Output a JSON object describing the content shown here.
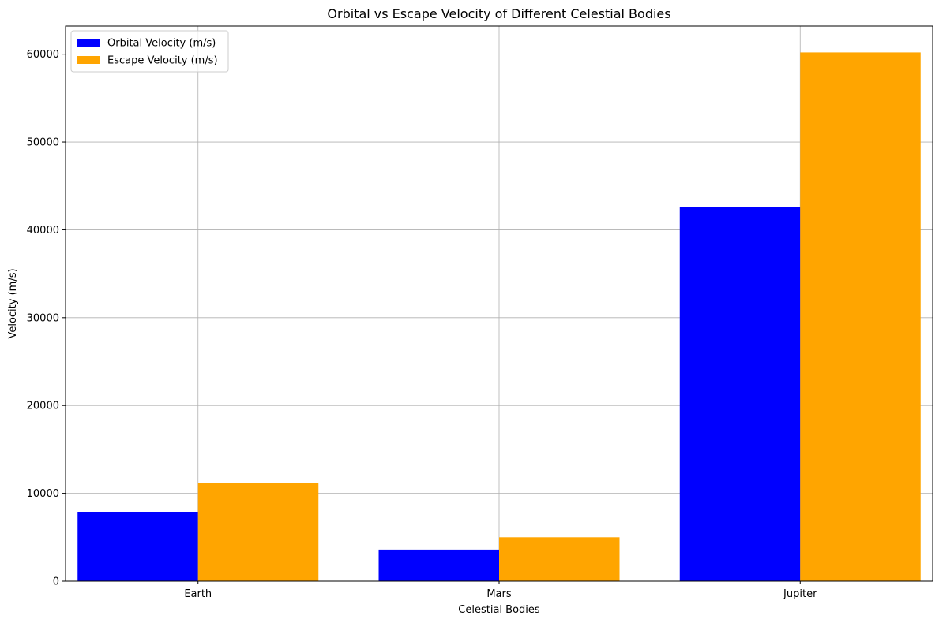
{
  "chart_data": {
    "type": "bar",
    "title": "Orbital vs Escape Velocity of Different Celestial Bodies",
    "xlabel": "Celestial Bodies",
    "ylabel": "Velocity (m/s)",
    "categories": [
      "Earth",
      "Mars",
      "Jupiter"
    ],
    "series": [
      {
        "name": "Orbital Velocity (m/s)",
        "color": "#0000ff",
        "values": [
          7900,
          3600,
          42600
        ]
      },
      {
        "name": "Escape Velocity (m/s)",
        "color": "#ffa500",
        "values": [
          11200,
          5000,
          60200
        ]
      }
    ],
    "ylim": [
      0,
      63200
    ],
    "yticks": [
      0,
      10000,
      20000,
      30000,
      40000,
      50000,
      60000
    ],
    "grid": true,
    "legend_position": "top-left"
  }
}
